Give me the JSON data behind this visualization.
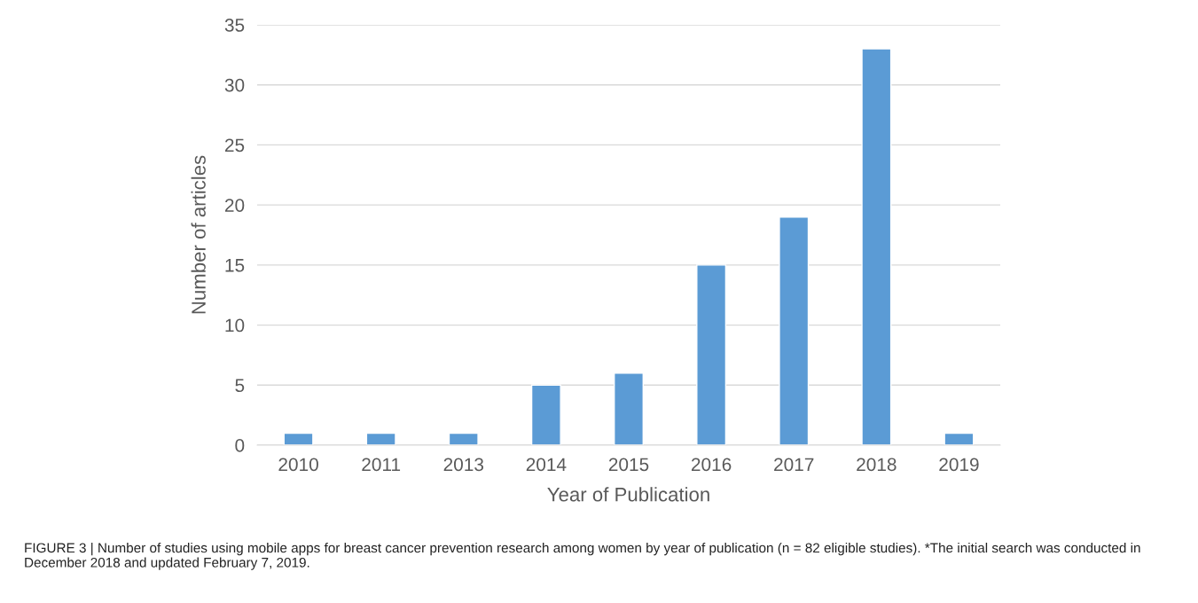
{
  "chart_data": {
    "type": "bar",
    "categories": [
      "2010",
      "2011",
      "2013",
      "2014",
      "2015",
      "2016",
      "2017",
      "2018",
      "2019"
    ],
    "values": [
      1,
      1,
      1,
      5,
      6,
      15,
      19,
      33,
      1
    ],
    "color": "#5b9bd5",
    "xlabel": "Year of Publication",
    "ylabel": "Number of articles",
    "ylim": [
      0,
      35
    ],
    "yticks": [
      0,
      5,
      10,
      15,
      20,
      25,
      30,
      35
    ],
    "grid": "y",
    "legend": false,
    "annotations": [
      "FIGURE 3 | Number of studies using mobile apps for breast cancer prevention research among women by year of publication (n = 82 eligible studies). *The initial search was conducted in December 2018 and updated February 7, 2019."
    ]
  }
}
